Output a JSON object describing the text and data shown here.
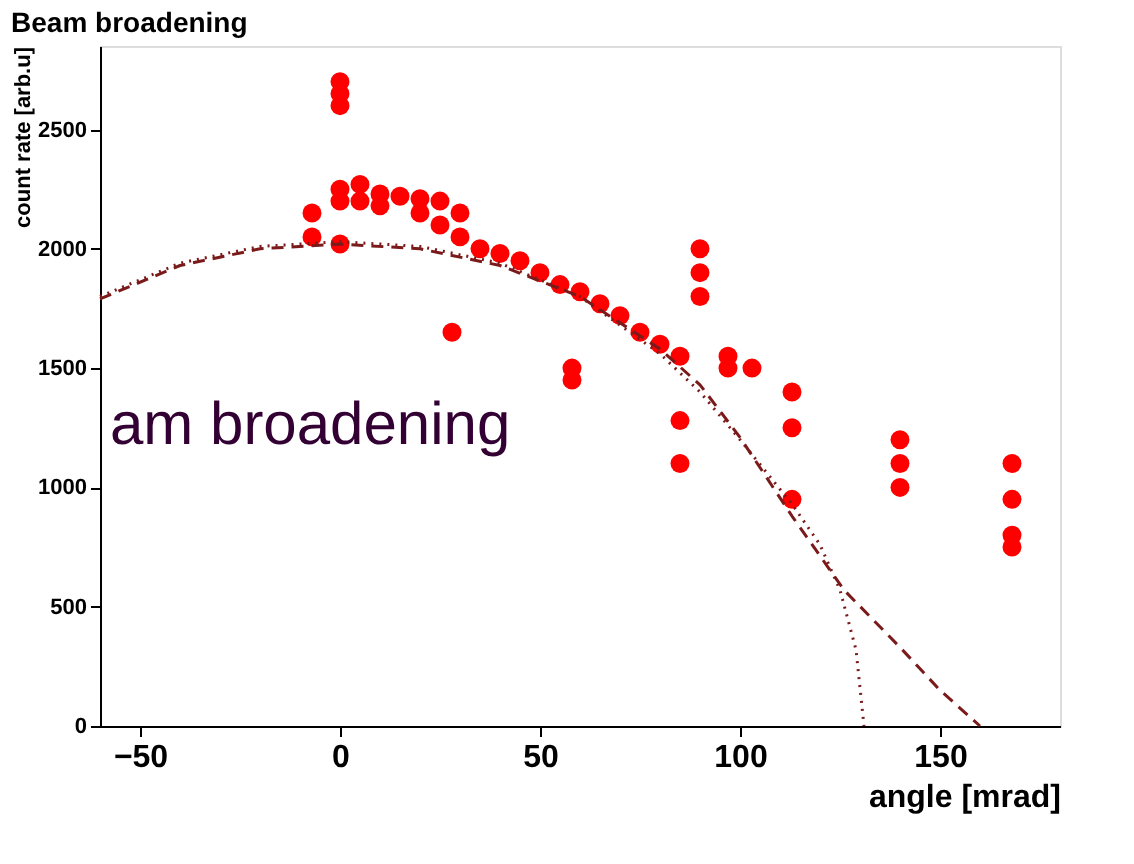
{
  "chart_data": {
    "type": "scatter",
    "title": "Beam broadening",
    "xlabel": "angle [mrad]",
    "ylabel": "count rate [arb.u]",
    "xlim": [
      -60,
      180
    ],
    "ylim": [
      0,
      2850
    ],
    "xticks": [
      -50,
      0,
      50,
      100,
      150
    ],
    "yticks": [
      0,
      500,
      1000,
      1500,
      2000,
      2500
    ],
    "grid": false,
    "annotations": [
      "am broadening"
    ],
    "series": [
      {
        "color": "#ff0000",
        "marker": "circle",
        "x": [
          -7,
          -7,
          0,
          0,
          0,
          0,
          0,
          0,
          5,
          5,
          10,
          10,
          15,
          20,
          20,
          25,
          25,
          28,
          30,
          30,
          35,
          40,
          45,
          50,
          55,
          58,
          58,
          60,
          65,
          70,
          75,
          80,
          85,
          85,
          85,
          90,
          90,
          90,
          97,
          97,
          103,
          113,
          113,
          113,
          140,
          140,
          140,
          168,
          168,
          168,
          168
        ],
        "values": [
          2050,
          2150,
          2700,
          2650,
          2600,
          2250,
          2200,
          2020,
          2270,
          2200,
          2230,
          2180,
          2220,
          2210,
          2150,
          2200,
          2100,
          1650,
          2150,
          2050,
          2000,
          1980,
          1950,
          1900,
          1850,
          1500,
          1450,
          1820,
          1770,
          1720,
          1650,
          1600,
          1550,
          1280,
          1100,
          2000,
          1900,
          1800,
          1550,
          1500,
          1500,
          1400,
          1250,
          950,
          1200,
          1100,
          1000,
          1100,
          950,
          800,
          750
        ]
      },
      {
        "type": "line",
        "color": "#7a1a1a",
        "line_style": "dashed",
        "x": [
          -60,
          -40,
          -20,
          0,
          20,
          40,
          60,
          80,
          90,
          100,
          113,
          126,
          140,
          150,
          160
        ],
        "values": [
          1790,
          1930,
          2000,
          2020,
          2000,
          1930,
          1800,
          1580,
          1430,
          1210,
          880,
          570,
          330,
          150,
          0
        ]
      },
      {
        "type": "line",
        "color": "#7a1a1a",
        "line_style": "dotted",
        "x": [
          -60,
          -40,
          -20,
          0,
          20,
          40,
          60,
          80,
          90,
          100,
          113,
          120,
          125,
          129,
          131
        ],
        "values": [
          1800,
          1940,
          2010,
          2030,
          2010,
          1940,
          1800,
          1560,
          1400,
          1200,
          930,
          760,
          570,
          320,
          0
        ]
      }
    ]
  }
}
